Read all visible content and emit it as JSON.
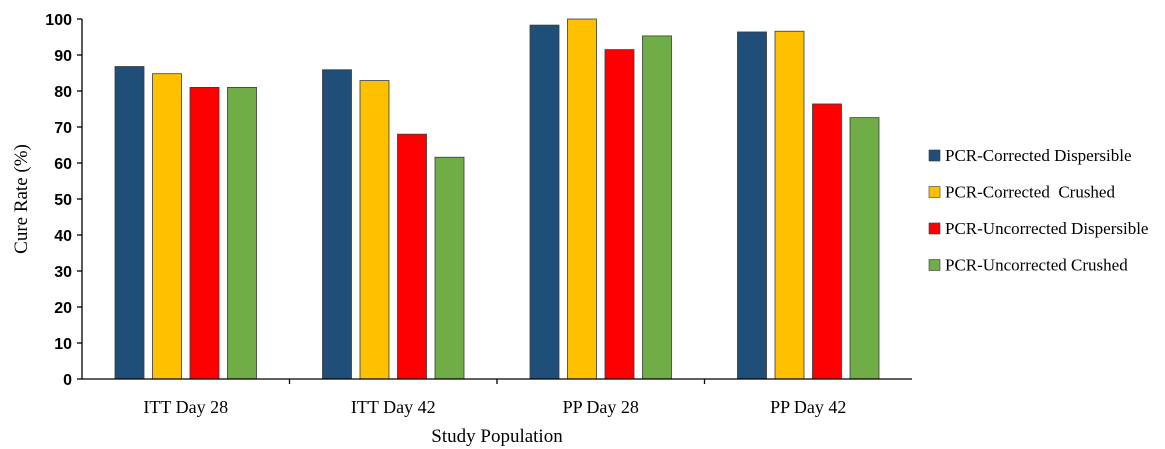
{
  "chart_data": {
    "type": "bar",
    "categories": [
      "ITT Day 28",
      "ITT Day 42",
      "PP Day 28",
      "PP Day 42"
    ],
    "series": [
      {
        "name": "PCR-Corrected Dispersible",
        "color": "#1f4e79",
        "values": [
          86.8,
          85.9,
          98.3,
          96.4
        ]
      },
      {
        "name": "PCR-Corrected  Crushed",
        "color": "#ffc000",
        "values": [
          84.8,
          82.9,
          100.0,
          96.6
        ]
      },
      {
        "name": "PCR-Uncorrected Dispersible",
        "color": "#ff0000",
        "values": [
          81.0,
          68.0,
          91.5,
          76.4
        ]
      },
      {
        "name": "PCR-Uncorrected Crushed",
        "color": "#70ad47",
        "values": [
          81.0,
          61.6,
          95.3,
          72.6
        ]
      }
    ],
    "ylim": [
      0,
      100
    ],
    "yticks": [
      "0",
      "10",
      "20",
      "30",
      "40",
      "50",
      "60",
      "70",
      "80",
      "90",
      "100"
    ],
    "xlabel": "Study Population",
    "ylabel": "Cure Rate (%)",
    "legend_position": "right",
    "grid": false
  }
}
